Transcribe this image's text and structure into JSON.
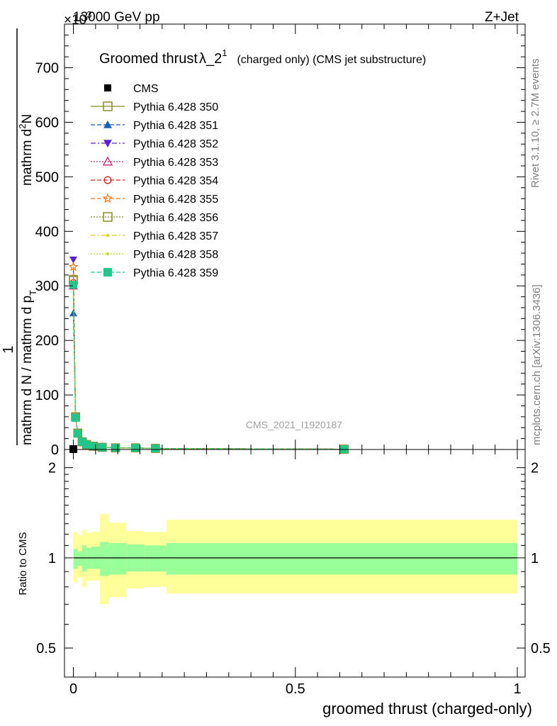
{
  "header": {
    "left": "13000 GeV pp",
    "right": "Z+Jet",
    "exponent": "×10",
    "exponent_power": "3"
  },
  "side_labels": {
    "rivet": "Rivet 3.1.10, ≥ 2.7M events",
    "mcplots": "mcplots.cern.ch [arXiv:1306.3436]"
  },
  "watermark": "CMS_2021_I1920187",
  "title": {
    "main": "Groomed thrust",
    "lambda": "λ_2",
    "sup": "1",
    "sub": "(charged only) (CMS jet substructure)"
  },
  "colors": {
    "cms": "#000000",
    "p350": "#8b8b2e",
    "p351": "#1560bd",
    "p352": "#5a22c8",
    "p353": "#c8267a",
    "p354": "#dc1e1e",
    "p355": "#f07a1e",
    "p356": "#8b8b2e",
    "p357": "#d7d21e",
    "p358": "#bedc1e",
    "p359": "#1ec88c",
    "band_inner": "#99ff99",
    "band_outer": "#ffff99"
  },
  "chart_data": [
    {
      "type": "line",
      "xlabel": "groomed thrust (charged-only)",
      "ylabel": "1 / mathrm d N / mathrm d p_T mathrm d p_T mathrm d lambda / mathrm d^2 N",
      "ylabel_parts": {
        "one": "1",
        "denominator": "mathrm d N / mathrm d p",
        "numerator": "mathrm d",
        "numerator_sup": "2",
        "numerator_rest": "N",
        "rest_top": "mathrm d p",
        "rest_top_tail": "mathrm d lambda",
        "sub_t": "T"
      },
      "x": [
        0.0,
        0.005,
        0.01,
        0.02,
        0.03,
        0.045,
        0.065,
        0.095,
        0.14,
        0.185,
        0.61
      ],
      "ylim": [
        0,
        780
      ],
      "ylim_unit_note": "×10^3",
      "y_ticks": [
        0,
        100,
        200,
        300,
        400,
        500,
        600,
        700
      ],
      "x_ticks": [
        0,
        0.5,
        1
      ],
      "x_tick_labels": [
        "0",
        "0.5",
        "1"
      ],
      "series": [
        {
          "name": "CMS",
          "values": [
            0.8,
            0,
            0,
            0,
            0,
            0,
            0,
            0,
            0,
            0,
            0
          ]
        },
        {
          "name": "Pythia 6.428 350",
          "values": [
            310,
            60,
            30,
            14,
            9,
            6,
            4,
            3,
            3,
            2,
            0.5
          ]
        },
        {
          "name": "Pythia 6.428 351",
          "values": [
            250,
            58,
            29,
            14,
            9,
            6,
            4,
            3,
            3,
            2,
            0.5
          ]
        },
        {
          "name": "Pythia 6.428 352",
          "values": [
            348,
            60,
            30,
            14,
            9,
            6,
            4,
            3,
            3,
            2,
            0.5
          ]
        },
        {
          "name": "Pythia 6.428 353",
          "values": [
            300,
            59,
            30,
            14,
            9,
            6,
            4,
            3,
            3,
            2,
            0.5
          ]
        },
        {
          "name": "Pythia 6.428 354",
          "values": [
            306,
            59,
            30,
            14,
            9,
            6,
            4,
            3,
            3,
            2,
            0.5
          ]
        },
        {
          "name": "Pythia 6.428 355",
          "values": [
            335,
            60,
            30,
            14,
            9,
            6,
            4,
            3,
            3,
            2,
            0.5
          ]
        },
        {
          "name": "Pythia 6.428 356",
          "values": [
            312,
            60,
            30,
            14,
            9,
            6,
            4,
            3,
            3,
            2,
            0.5
          ]
        },
        {
          "name": "Pythia 6.428 357",
          "values": [
            305,
            59,
            30,
            14,
            9,
            6,
            4,
            3,
            3,
            2,
            0.5
          ]
        },
        {
          "name": "Pythia 6.428 358",
          "values": [
            302,
            59,
            30,
            14,
            9,
            6,
            4,
            3,
            3,
            2,
            0.5
          ]
        },
        {
          "name": "Pythia 6.428 359",
          "values": [
            302,
            58,
            29,
            14,
            9,
            6,
            4,
            3,
            3,
            2,
            0.5
          ]
        }
      ],
      "legend": {
        "placement": "top-left",
        "entries": [
          {
            "label": "CMS",
            "marker": "square-filled",
            "line": "none",
            "color_key": "cms"
          },
          {
            "label": "Pythia 6.428 350",
            "marker": "square-open",
            "line": "solid",
            "color_key": "p350"
          },
          {
            "label": "Pythia 6.428 351",
            "marker": "triangle-up-filled",
            "line": "dashed",
            "color_key": "p351"
          },
          {
            "label": "Pythia 6.428 352",
            "marker": "triangle-down-filled",
            "line": "dashdot",
            "color_key": "p352"
          },
          {
            "label": "Pythia 6.428 353",
            "marker": "triangle-up-open",
            "line": "dotted",
            "color_key": "p353"
          },
          {
            "label": "Pythia 6.428 354",
            "marker": "circle-open",
            "line": "dashed",
            "color_key": "p354"
          },
          {
            "label": "Pythia 6.428 355",
            "marker": "star-open",
            "line": "dashed",
            "color_key": "p355"
          },
          {
            "label": "Pythia 6.428 356",
            "marker": "square-open",
            "line": "dotted",
            "color_key": "p356"
          },
          {
            "label": "Pythia 6.428 357",
            "marker": "dot",
            "line": "dashdot",
            "color_key": "p357"
          },
          {
            "label": "Pythia 6.428 358",
            "marker": "dot",
            "line": "dotted",
            "color_key": "p358"
          },
          {
            "label": "Pythia 6.428 359",
            "marker": "square-filled",
            "line": "dashed",
            "color_key": "p359"
          }
        ]
      }
    },
    {
      "type": "area",
      "ylabel": "Ratio to CMS",
      "xlabel": "groomed thrust (charged-only)",
      "log_y": true,
      "ylim": [
        0.4,
        2.3
      ],
      "y_ticks": [
        0.5,
        1,
        2
      ],
      "y_tick_labels": [
        "0.5",
        "1",
        "2"
      ],
      "bin_edges": [
        0.0,
        0.01,
        0.02,
        0.03,
        0.04,
        0.06,
        0.08,
        0.12,
        0.16,
        0.21,
        1.0
      ],
      "inner_band": {
        "lower": [
          0.92,
          0.94,
          0.9,
          0.92,
          0.92,
          0.87,
          0.88,
          0.9,
          0.9,
          0.88
        ],
        "upper": [
          1.07,
          1.05,
          1.1,
          1.08,
          1.09,
          1.13,
          1.12,
          1.11,
          1.1,
          1.12
        ]
      },
      "outer_band": {
        "lower": [
          0.83,
          0.86,
          0.8,
          0.84,
          0.84,
          0.7,
          0.74,
          0.79,
          0.8,
          0.76
        ],
        "upper": [
          1.22,
          1.19,
          1.24,
          1.21,
          1.22,
          1.4,
          1.31,
          1.23,
          1.22,
          1.34
        ]
      },
      "reference": 1
    }
  ]
}
